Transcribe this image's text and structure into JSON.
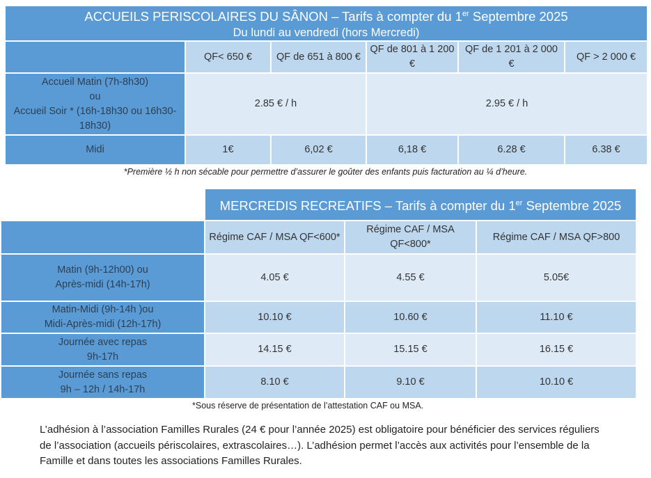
{
  "table1": {
    "title_main": "ACCUEILS PERISCOLAIRES DU SÂNON – Tarifs à compter du 1",
    "title_sup": "er",
    "title_end": " Septembre 2025",
    "subtitle": "Du lundi au vendredi (hors Mercredi)",
    "headers": [
      "QF< 650 €",
      "QF de 651 à 800 €",
      "QF de 801 à 1 200 €",
      "QF de 1 201 à 2 000 €",
      "QF > 2 000 €"
    ],
    "accueil_label": [
      "Accueil Matin (7h-8h30)",
      "ou",
      "Accueil Soir * (16h-18h30 ou 16h30-18h30)"
    ],
    "accueil_prices": [
      "2.85 € / h",
      "2.95 € / h"
    ],
    "midi_label": "Midi",
    "midi_prices": [
      "1€",
      "6,02 €",
      "6,18 €",
      "6.28 €",
      "6.38 €"
    ],
    "footnote": "*Première ½ h non sécable pour permettre d’assurer le goûter des enfants puis facturation au ¼ d’heure."
  },
  "table2": {
    "title_main": "MERCREDIS RECREATIFS – Tarifs à compter du 1",
    "title_sup": "er",
    "title_end": " Septembre 2025",
    "headers": [
      "Régime CAF / MSA QF<600*",
      "Régime CAF / MSA QF<800*",
      "Régime CAF / MSA QF>800"
    ],
    "rows": [
      {
        "l1a": "Matin",
        "l1b": " (9h-12h00) ou",
        "l2a": "Après-midi",
        "l2b": " (14h-17h)",
        "prices": [
          "4.05 €",
          "4.55 €",
          "5.05€"
        ]
      },
      {
        "l1a": "Matin-Midi",
        "l1b": " (9h-14h )ou",
        "l2a": "Midi-Après-midi",
        "l2b": " (12h-17h)",
        "prices": [
          "10.10 €",
          "10.60 €",
          "11.10 €"
        ]
      },
      {
        "l1a": "Journée avec repas",
        "l1b": "",
        "l2a": "9h-17h",
        "l2b": "",
        "prices": [
          "14.15 €",
          "15.15 €",
          "16.15 €"
        ]
      },
      {
        "l1a": "Journée sans repas",
        "l1b": "",
        "l2a": "9h – 12h / 14h-17h",
        "l2b": "",
        "prices": [
          "8.10 €",
          "9.10 €",
          "10.10 €"
        ]
      }
    ],
    "footnote": "*Sous réserve de présentation de l’attestation CAF ou MSA."
  },
  "paragraph": "L’adhésion à l’association Familles Rurales (24 € pour l’année 2025) est obligatoire pour bénéficier des services réguliers de l’association (accueils périscolaires, extrascolaires…). L’adhésion permet l’accès aux activités pour l’ensemble de la Famille et dans toutes les associations Familles Rurales."
}
